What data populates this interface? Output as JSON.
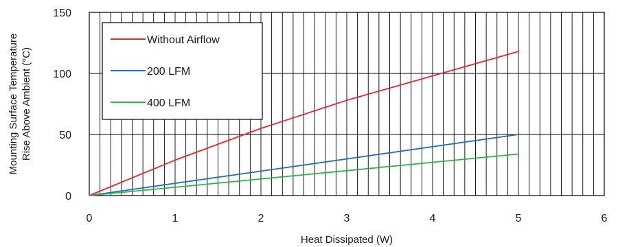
{
  "chart_data": {
    "type": "line",
    "xlabel": "Heat Dissipated (W)",
    "ylabel": [
      "Mounting Surface Temperature",
      "Rise Above  Ambient (°C)"
    ],
    "xlim": [
      0,
      6
    ],
    "ylim": [
      0,
      150
    ],
    "x_ticks": [
      0,
      1,
      2,
      3,
      4,
      5,
      6
    ],
    "y_ticks": [
      0,
      50,
      100,
      150
    ],
    "x_minor_step": 0.125,
    "y_major_grid": [
      50,
      100
    ],
    "grid": true,
    "legend_position": "top-left",
    "series": [
      {
        "name": "Without Airflow",
        "color": "#e8242b",
        "x": [
          0,
          1,
          2,
          3,
          4,
          5
        ],
        "y": [
          0,
          29,
          55,
          78,
          98,
          118
        ]
      },
      {
        "name": "200 LFM",
        "color": "#1f6fb5",
        "x": [
          0,
          5
        ],
        "y": [
          0,
          50
        ]
      },
      {
        "name": "400 LFM",
        "color": "#2db34a",
        "x": [
          0,
          5
        ],
        "y": [
          0,
          34
        ]
      }
    ]
  }
}
